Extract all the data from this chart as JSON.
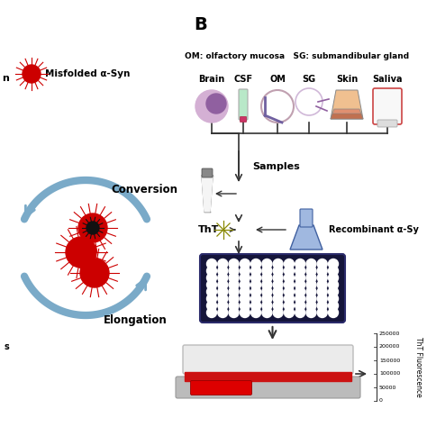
{
  "bg_color": "#ffffff",
  "title_B": "B",
  "legend_text1": "Misfolded α-Syn",
  "om_sg_label": "OM: olfactory mucosa   SG: submandibular gland",
  "sample_labels": [
    "Brain",
    "CSF",
    "OM",
    "SG",
    "Skin",
    "Saliva"
  ],
  "conversion_label": "Conversion",
  "elongation_label": "Elongation",
  "red_color": "#cc0000",
  "blue_arrow_color": "#7aaac8",
  "tht_label": "ThT",
  "samples_label": "Samples",
  "recombinant_label": "Recombinant α-Sy",
  "tht_fluor_label": "ThT Fluorescence",
  "tht_values": [
    "250000",
    "200000",
    "150000",
    "100000",
    "50000",
    "0"
  ]
}
